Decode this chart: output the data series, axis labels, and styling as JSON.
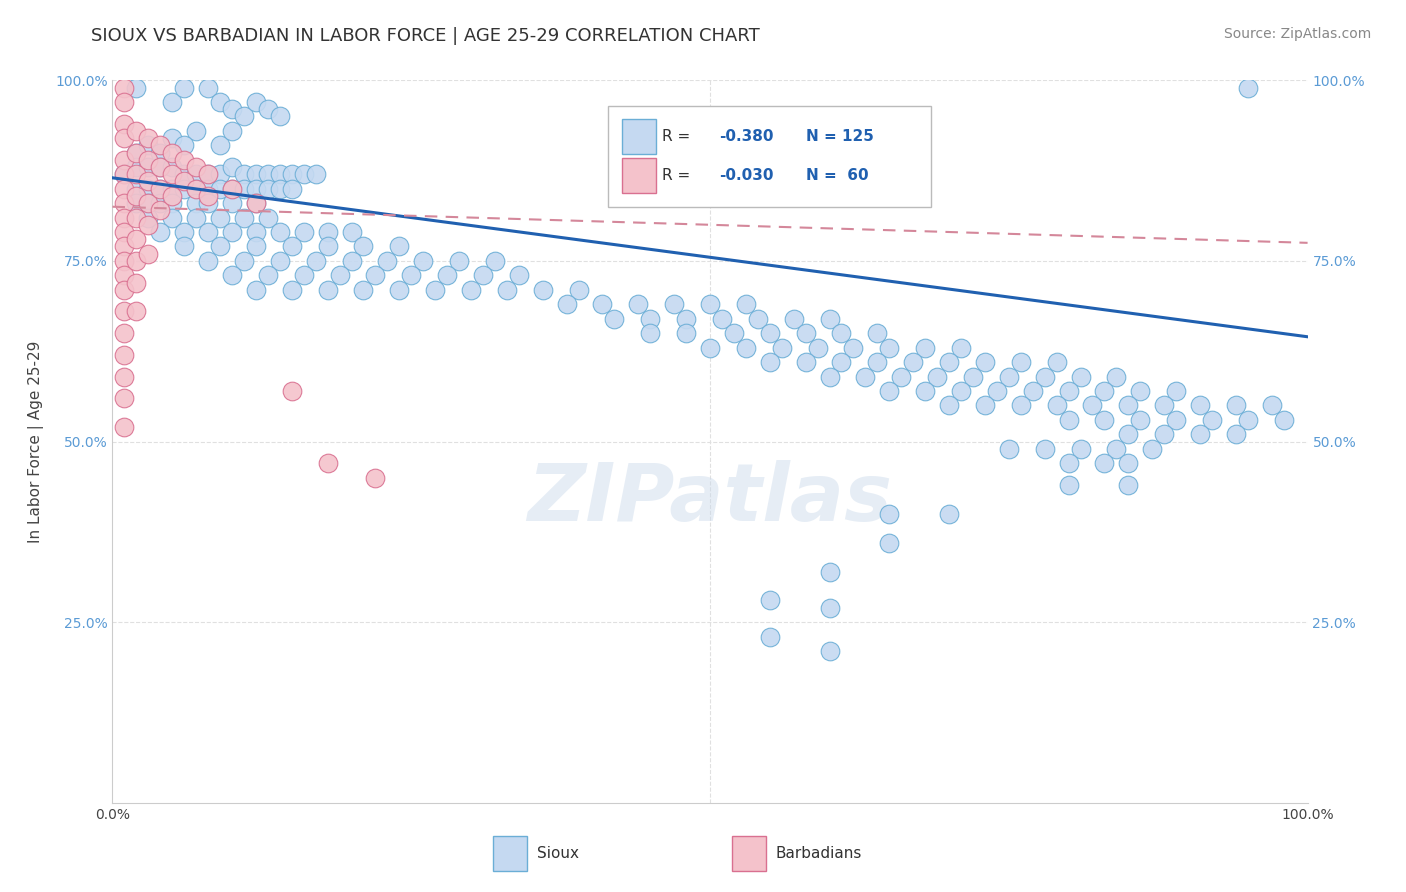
{
  "title": "SIOUX VS BARBADIAN IN LABOR FORCE | AGE 25-29 CORRELATION CHART",
  "source": "Source: ZipAtlas.com",
  "ylabel": "In Labor Force | Age 25-29",
  "xlim": [
    0.0,
    1.0
  ],
  "ylim": [
    0.0,
    1.0
  ],
  "ytick_labels": [
    "25.0%",
    "50.0%",
    "75.0%",
    "100.0%"
  ],
  "ytick_positions": [
    0.25,
    0.5,
    0.75,
    1.0
  ],
  "sioux_color": "#c5d9f1",
  "sioux_edge": "#6baed6",
  "barbadian_color": "#f4c2cb",
  "barbadian_edge": "#d97090",
  "trend_sioux_color": "#2060b0",
  "trend_barbadian_color": "#d4879a",
  "background_color": "#ffffff",
  "grid_color": "#e0e0e0",
  "title_fontsize": 13,
  "source_fontsize": 10,
  "sioux_trend_x0": 0.0,
  "sioux_trend_y0": 0.865,
  "sioux_trend_x1": 1.0,
  "sioux_trend_y1": 0.645,
  "barb_trend_x0": 0.0,
  "barb_trend_y0": 0.825,
  "barb_trend_x1": 1.0,
  "barb_trend_y1": 0.775,
  "sioux_points": [
    [
      0.02,
      0.99
    ],
    [
      0.05,
      0.97
    ],
    [
      0.06,
      0.99
    ],
    [
      0.08,
      0.99
    ],
    [
      0.09,
      0.97
    ],
    [
      0.1,
      0.96
    ],
    [
      0.11,
      0.95
    ],
    [
      0.12,
      0.97
    ],
    [
      0.13,
      0.96
    ],
    [
      0.14,
      0.95
    ],
    [
      0.05,
      0.92
    ],
    [
      0.07,
      0.93
    ],
    [
      0.09,
      0.91
    ],
    [
      0.1,
      0.93
    ],
    [
      0.02,
      0.9
    ],
    [
      0.03,
      0.91
    ],
    [
      0.04,
      0.9
    ],
    [
      0.06,
      0.91
    ],
    [
      0.01,
      0.87
    ],
    [
      0.02,
      0.88
    ],
    [
      0.03,
      0.88
    ],
    [
      0.04,
      0.88
    ],
    [
      0.05,
      0.88
    ],
    [
      0.06,
      0.87
    ],
    [
      0.07,
      0.87
    ],
    [
      0.08,
      0.87
    ],
    [
      0.09,
      0.87
    ],
    [
      0.1,
      0.88
    ],
    [
      0.11,
      0.87
    ],
    [
      0.12,
      0.87
    ],
    [
      0.13,
      0.87
    ],
    [
      0.14,
      0.87
    ],
    [
      0.15,
      0.87
    ],
    [
      0.16,
      0.87
    ],
    [
      0.17,
      0.87
    ],
    [
      0.02,
      0.85
    ],
    [
      0.03,
      0.85
    ],
    [
      0.04,
      0.85
    ],
    [
      0.05,
      0.85
    ],
    [
      0.06,
      0.85
    ],
    [
      0.07,
      0.85
    ],
    [
      0.08,
      0.85
    ],
    [
      0.09,
      0.85
    ],
    [
      0.1,
      0.85
    ],
    [
      0.11,
      0.85
    ],
    [
      0.12,
      0.85
    ],
    [
      0.13,
      0.85
    ],
    [
      0.14,
      0.85
    ],
    [
      0.15,
      0.85
    ],
    [
      0.02,
      0.83
    ],
    [
      0.03,
      0.83
    ],
    [
      0.04,
      0.83
    ],
    [
      0.05,
      0.83
    ],
    [
      0.07,
      0.83
    ],
    [
      0.08,
      0.83
    ],
    [
      0.1,
      0.83
    ],
    [
      0.12,
      0.83
    ],
    [
      0.03,
      0.81
    ],
    [
      0.05,
      0.81
    ],
    [
      0.07,
      0.81
    ],
    [
      0.09,
      0.81
    ],
    [
      0.11,
      0.81
    ],
    [
      0.13,
      0.81
    ],
    [
      0.04,
      0.79
    ],
    [
      0.06,
      0.79
    ],
    [
      0.08,
      0.79
    ],
    [
      0.1,
      0.79
    ],
    [
      0.12,
      0.79
    ],
    [
      0.14,
      0.79
    ],
    [
      0.16,
      0.79
    ],
    [
      0.18,
      0.79
    ],
    [
      0.2,
      0.79
    ],
    [
      0.06,
      0.77
    ],
    [
      0.09,
      0.77
    ],
    [
      0.12,
      0.77
    ],
    [
      0.15,
      0.77
    ],
    [
      0.18,
      0.77
    ],
    [
      0.21,
      0.77
    ],
    [
      0.24,
      0.77
    ],
    [
      0.08,
      0.75
    ],
    [
      0.11,
      0.75
    ],
    [
      0.14,
      0.75
    ],
    [
      0.17,
      0.75
    ],
    [
      0.2,
      0.75
    ],
    [
      0.23,
      0.75
    ],
    [
      0.26,
      0.75
    ],
    [
      0.29,
      0.75
    ],
    [
      0.32,
      0.75
    ],
    [
      0.1,
      0.73
    ],
    [
      0.13,
      0.73
    ],
    [
      0.16,
      0.73
    ],
    [
      0.19,
      0.73
    ],
    [
      0.22,
      0.73
    ],
    [
      0.25,
      0.73
    ],
    [
      0.28,
      0.73
    ],
    [
      0.31,
      0.73
    ],
    [
      0.34,
      0.73
    ],
    [
      0.12,
      0.71
    ],
    [
      0.15,
      0.71
    ],
    [
      0.18,
      0.71
    ],
    [
      0.21,
      0.71
    ],
    [
      0.24,
      0.71
    ],
    [
      0.27,
      0.71
    ],
    [
      0.3,
      0.71
    ],
    [
      0.33,
      0.71
    ],
    [
      0.36,
      0.71
    ],
    [
      0.39,
      0.71
    ],
    [
      0.38,
      0.69
    ],
    [
      0.41,
      0.69
    ],
    [
      0.44,
      0.69
    ],
    [
      0.47,
      0.69
    ],
    [
      0.5,
      0.69
    ],
    [
      0.53,
      0.69
    ],
    [
      0.42,
      0.67
    ],
    [
      0.45,
      0.67
    ],
    [
      0.48,
      0.67
    ],
    [
      0.51,
      0.67
    ],
    [
      0.54,
      0.67
    ],
    [
      0.57,
      0.67
    ],
    [
      0.6,
      0.67
    ],
    [
      0.45,
      0.65
    ],
    [
      0.48,
      0.65
    ],
    [
      0.52,
      0.65
    ],
    [
      0.55,
      0.65
    ],
    [
      0.58,
      0.65
    ],
    [
      0.61,
      0.65
    ],
    [
      0.64,
      0.65
    ],
    [
      0.5,
      0.63
    ],
    [
      0.53,
      0.63
    ],
    [
      0.56,
      0.63
    ],
    [
      0.59,
      0.63
    ],
    [
      0.62,
      0.63
    ],
    [
      0.65,
      0.63
    ],
    [
      0.68,
      0.63
    ],
    [
      0.71,
      0.63
    ],
    [
      0.55,
      0.61
    ],
    [
      0.58,
      0.61
    ],
    [
      0.61,
      0.61
    ],
    [
      0.64,
      0.61
    ],
    [
      0.67,
      0.61
    ],
    [
      0.7,
      0.61
    ],
    [
      0.73,
      0.61
    ],
    [
      0.76,
      0.61
    ],
    [
      0.79,
      0.61
    ],
    [
      0.6,
      0.59
    ],
    [
      0.63,
      0.59
    ],
    [
      0.66,
      0.59
    ],
    [
      0.69,
      0.59
    ],
    [
      0.72,
      0.59
    ],
    [
      0.75,
      0.59
    ],
    [
      0.78,
      0.59
    ],
    [
      0.81,
      0.59
    ],
    [
      0.84,
      0.59
    ],
    [
      0.65,
      0.57
    ],
    [
      0.68,
      0.57
    ],
    [
      0.71,
      0.57
    ],
    [
      0.74,
      0.57
    ],
    [
      0.77,
      0.57
    ],
    [
      0.8,
      0.57
    ],
    [
      0.83,
      0.57
    ],
    [
      0.86,
      0.57
    ],
    [
      0.89,
      0.57
    ],
    [
      0.7,
      0.55
    ],
    [
      0.73,
      0.55
    ],
    [
      0.76,
      0.55
    ],
    [
      0.79,
      0.55
    ],
    [
      0.82,
      0.55
    ],
    [
      0.85,
      0.55
    ],
    [
      0.88,
      0.55
    ],
    [
      0.91,
      0.55
    ],
    [
      0.94,
      0.55
    ],
    [
      0.97,
      0.55
    ],
    [
      0.8,
      0.53
    ],
    [
      0.83,
      0.53
    ],
    [
      0.86,
      0.53
    ],
    [
      0.89,
      0.53
    ],
    [
      0.92,
      0.53
    ],
    [
      0.95,
      0.53
    ],
    [
      0.98,
      0.53
    ],
    [
      0.85,
      0.51
    ],
    [
      0.88,
      0.51
    ],
    [
      0.91,
      0.51
    ],
    [
      0.94,
      0.51
    ],
    [
      0.75,
      0.49
    ],
    [
      0.78,
      0.49
    ],
    [
      0.81,
      0.49
    ],
    [
      0.84,
      0.49
    ],
    [
      0.87,
      0.49
    ],
    [
      0.8,
      0.47
    ],
    [
      0.83,
      0.47
    ],
    [
      0.85,
      0.47
    ],
    [
      0.8,
      0.44
    ],
    [
      0.85,
      0.44
    ],
    [
      0.65,
      0.4
    ],
    [
      0.7,
      0.4
    ],
    [
      0.65,
      0.36
    ],
    [
      0.6,
      0.32
    ],
    [
      0.55,
      0.28
    ],
    [
      0.6,
      0.27
    ],
    [
      0.55,
      0.23
    ],
    [
      0.6,
      0.21
    ],
    [
      0.95,
      0.99
    ]
  ],
  "barbadian_points": [
    [
      0.01,
      0.99
    ],
    [
      0.01,
      0.97
    ],
    [
      0.01,
      0.94
    ],
    [
      0.01,
      0.92
    ],
    [
      0.01,
      0.89
    ],
    [
      0.01,
      0.87
    ],
    [
      0.01,
      0.85
    ],
    [
      0.01,
      0.83
    ],
    [
      0.01,
      0.81
    ],
    [
      0.01,
      0.79
    ],
    [
      0.01,
      0.77
    ],
    [
      0.01,
      0.75
    ],
    [
      0.01,
      0.73
    ],
    [
      0.01,
      0.71
    ],
    [
      0.01,
      0.68
    ],
    [
      0.01,
      0.65
    ],
    [
      0.01,
      0.62
    ],
    [
      0.01,
      0.59
    ],
    [
      0.01,
      0.56
    ],
    [
      0.01,
      0.52
    ],
    [
      0.02,
      0.93
    ],
    [
      0.02,
      0.9
    ],
    [
      0.02,
      0.87
    ],
    [
      0.02,
      0.84
    ],
    [
      0.02,
      0.81
    ],
    [
      0.02,
      0.78
    ],
    [
      0.02,
      0.75
    ],
    [
      0.02,
      0.72
    ],
    [
      0.02,
      0.68
    ],
    [
      0.03,
      0.92
    ],
    [
      0.03,
      0.89
    ],
    [
      0.03,
      0.86
    ],
    [
      0.03,
      0.83
    ],
    [
      0.03,
      0.8
    ],
    [
      0.03,
      0.76
    ],
    [
      0.04,
      0.91
    ],
    [
      0.04,
      0.88
    ],
    [
      0.04,
      0.85
    ],
    [
      0.04,
      0.82
    ],
    [
      0.05,
      0.9
    ],
    [
      0.05,
      0.87
    ],
    [
      0.05,
      0.84
    ],
    [
      0.06,
      0.89
    ],
    [
      0.06,
      0.86
    ],
    [
      0.07,
      0.88
    ],
    [
      0.07,
      0.85
    ],
    [
      0.08,
      0.87
    ],
    [
      0.08,
      0.84
    ],
    [
      0.1,
      0.85
    ],
    [
      0.12,
      0.83
    ],
    [
      0.15,
      0.57
    ],
    [
      0.18,
      0.47
    ],
    [
      0.22,
      0.45
    ]
  ]
}
